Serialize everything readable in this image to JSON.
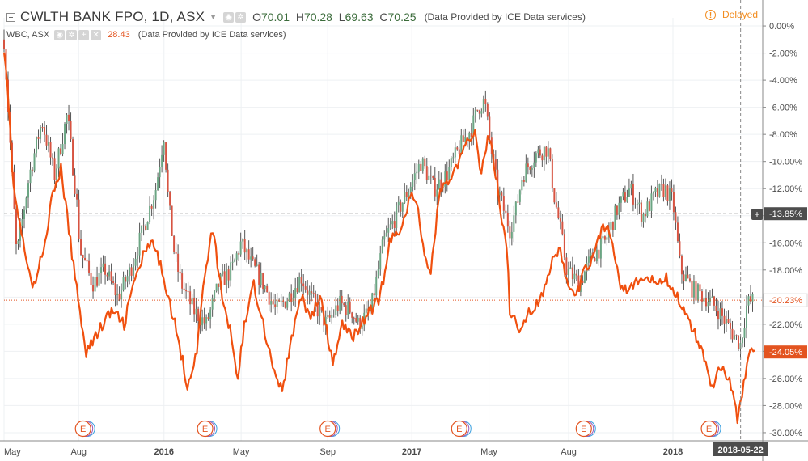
{
  "header": {
    "symbol_title": "CWLTH BANK FPO, 1D, ASX",
    "open_label": "O",
    "open_value": "70.01",
    "high_label": "H",
    "high_value": "70.28",
    "low_label": "L",
    "low_value": "69.63",
    "close_label": "C",
    "close_value": "70.25",
    "provider": "(Data Provided by ICE Data services)",
    "delayed_label": "Delayed"
  },
  "compare": {
    "symbol": "WBC, ASX",
    "value": "28.43",
    "provider": "(Data Provided by ICE Data services)"
  },
  "colors": {
    "up": "#6ba583",
    "down": "#d75442",
    "wick": "#555555",
    "compare_line": "#f0500f",
    "grid": "#eef0f3",
    "axis": "#888888",
    "marker": "#e35420"
  },
  "chart_data": {
    "type": "line",
    "y_unit": "%",
    "ylim": [
      -30.6,
      0.6
    ],
    "y_ticks": [
      "0.00%",
      "-2.00%",
      "-4.00%",
      "-6.00%",
      "-8.00%",
      "-10.00%",
      "-12.00%",
      "-14.00%",
      "-16.00%",
      "-18.00%",
      "-20.00%",
      "-22.00%",
      "-24.00%",
      "-26.00%",
      "-28.00%",
      "-30.00%"
    ],
    "y_tick_values": [
      0,
      -2,
      -4,
      -6,
      -8,
      -10,
      -12,
      -14,
      -16,
      -18,
      -20,
      -22,
      -24,
      -26,
      -28,
      -30
    ],
    "x_ticks": [
      "May",
      "Aug",
      "2016",
      "May",
      "Sep",
      "2017",
      "May",
      "Aug",
      "2018"
    ],
    "x_tick_positions": [
      0,
      0.118,
      0.253,
      0.375,
      0.512,
      0.645,
      0.767,
      0.893,
      1.058
    ],
    "x_range": [
      0,
      1.2
    ],
    "crosshair_date": "2018-05-22",
    "crosshair_x": 1.165,
    "series": [
      {
        "name": "CWLTH BANK FPO, 1D, ASX",
        "style": "candles",
        "points": [
          [
            0,
            -1
          ],
          [
            0.01,
            -9
          ],
          [
            0.02,
            -17
          ],
          [
            0.04,
            -11
          ],
          [
            0.06,
            -7
          ],
          [
            0.08,
            -11
          ],
          [
            0.1,
            -6.5
          ],
          [
            0.115,
            -13
          ],
          [
            0.12,
            -16.5
          ],
          [
            0.14,
            -19
          ],
          [
            0.16,
            -18
          ],
          [
            0.18,
            -20
          ],
          [
            0.2,
            -18
          ],
          [
            0.22,
            -15
          ],
          [
            0.24,
            -12
          ],
          [
            0.253,
            -8
          ],
          [
            0.26,
            -13
          ],
          [
            0.27,
            -17
          ],
          [
            0.28,
            -19
          ],
          [
            0.3,
            -21
          ],
          [
            0.32,
            -22
          ],
          [
            0.34,
            -19
          ],
          [
            0.36,
            -18
          ],
          [
            0.375,
            -16
          ],
          [
            0.39,
            -17.5
          ],
          [
            0.41,
            -19
          ],
          [
            0.43,
            -21
          ],
          [
            0.45,
            -20
          ],
          [
            0.47,
            -18.5
          ],
          [
            0.49,
            -20.5
          ],
          [
            0.51,
            -22
          ],
          [
            0.53,
            -20.5
          ],
          [
            0.55,
            -21
          ],
          [
            0.56,
            -22
          ],
          [
            0.58,
            -21
          ],
          [
            0.6,
            -16
          ],
          [
            0.62,
            -14
          ],
          [
            0.645,
            -11.5
          ],
          [
            0.66,
            -10
          ],
          [
            0.68,
            -12
          ],
          [
            0.7,
            -11
          ],
          [
            0.72,
            -9
          ],
          [
            0.74,
            -7.5
          ],
          [
            0.75,
            -6
          ],
          [
            0.76,
            -5.5
          ],
          [
            0.767,
            -8
          ],
          [
            0.78,
            -12
          ],
          [
            0.8,
            -15
          ],
          [
            0.81,
            -13.5
          ],
          [
            0.82,
            -11
          ],
          [
            0.84,
            -9.5
          ],
          [
            0.86,
            -9
          ],
          [
            0.87,
            -12.5
          ],
          [
            0.88,
            -15
          ],
          [
            0.89,
            -18
          ],
          [
            0.91,
            -19
          ],
          [
            0.93,
            -17
          ],
          [
            0.95,
            -16
          ],
          [
            0.97,
            -13.5
          ],
          [
            0.99,
            -12
          ],
          [
            1.01,
            -14
          ],
          [
            1.03,
            -12.5
          ],
          [
            1.045,
            -12
          ],
          [
            1.058,
            -13
          ],
          [
            1.07,
            -18
          ],
          [
            1.09,
            -19.5
          ],
          [
            1.11,
            -20
          ],
          [
            1.13,
            -21
          ],
          [
            1.15,
            -22.5
          ],
          [
            1.165,
            -23.5
          ],
          [
            1.175,
            -20.5
          ],
          [
            1.185,
            -20.23
          ]
        ]
      },
      {
        "name": "WBC, ASX",
        "style": "line",
        "points": [
          [
            0,
            -1.5
          ],
          [
            0.005,
            -4
          ],
          [
            0.015,
            -12
          ],
          [
            0.03,
            -16
          ],
          [
            0.045,
            -19.5
          ],
          [
            0.06,
            -17
          ],
          [
            0.075,
            -13
          ],
          [
            0.09,
            -10.5
          ],
          [
            0.105,
            -16
          ],
          [
            0.12,
            -21
          ],
          [
            0.13,
            -24
          ],
          [
            0.15,
            -22.5
          ],
          [
            0.17,
            -21
          ],
          [
            0.19,
            -22
          ],
          [
            0.205,
            -19
          ],
          [
            0.22,
            -17
          ],
          [
            0.235,
            -16
          ],
          [
            0.253,
            -18.5
          ],
          [
            0.265,
            -21
          ],
          [
            0.275,
            -23
          ],
          [
            0.29,
            -26.5
          ],
          [
            0.305,
            -24
          ],
          [
            0.318,
            -18
          ],
          [
            0.33,
            -15
          ],
          [
            0.345,
            -20
          ],
          [
            0.36,
            -23
          ],
          [
            0.37,
            -26
          ],
          [
            0.38,
            -22
          ],
          [
            0.395,
            -19
          ],
          [
            0.41,
            -22
          ],
          [
            0.425,
            -25
          ],
          [
            0.44,
            -27
          ],
          [
            0.455,
            -23
          ],
          [
            0.47,
            -20
          ],
          [
            0.485,
            -21.5
          ],
          [
            0.5,
            -20
          ],
          [
            0.512,
            -23
          ],
          [
            0.52,
            -25
          ],
          [
            0.535,
            -22
          ],
          [
            0.55,
            -23
          ],
          [
            0.565,
            -22
          ],
          [
            0.58,
            -21
          ],
          [
            0.595,
            -20
          ],
          [
            0.61,
            -16
          ],
          [
            0.625,
            -15
          ],
          [
            0.645,
            -12.5
          ],
          [
            0.655,
            -13.5
          ],
          [
            0.665,
            -17
          ],
          [
            0.675,
            -18
          ],
          [
            0.69,
            -12
          ],
          [
            0.71,
            -11
          ],
          [
            0.73,
            -9
          ],
          [
            0.745,
            -7.5
          ],
          [
            0.755,
            -11
          ],
          [
            0.767,
            -8
          ],
          [
            0.775,
            -10
          ],
          [
            0.785,
            -13.5
          ],
          [
            0.795,
            -16
          ],
          [
            0.8,
            -21
          ],
          [
            0.815,
            -22.5
          ],
          [
            0.83,
            -21
          ],
          [
            0.845,
            -20.5
          ],
          [
            0.855,
            -19.5
          ],
          [
            0.87,
            -17
          ],
          [
            0.88,
            -16.5
          ],
          [
            0.893,
            -19.5
          ],
          [
            0.905,
            -20
          ],
          [
            0.915,
            -18.5
          ],
          [
            0.93,
            -17
          ],
          [
            0.94,
            -15.5
          ],
          [
            0.955,
            -14.5
          ],
          [
            0.965,
            -16.5
          ],
          [
            0.975,
            -19
          ],
          [
            0.99,
            -19.5
          ],
          [
            1.0,
            -19
          ],
          [
            1.015,
            -18.5
          ],
          [
            1.03,
            -19
          ],
          [
            1.045,
            -18.5
          ],
          [
            1.06,
            -19.5
          ],
          [
            1.075,
            -21
          ],
          [
            1.09,
            -22.5
          ],
          [
            1.105,
            -24
          ],
          [
            1.12,
            -26.5
          ],
          [
            1.135,
            -25
          ],
          [
            1.15,
            -26.5
          ],
          [
            1.16,
            -29
          ],
          [
            1.168,
            -27
          ],
          [
            1.178,
            -24
          ],
          [
            1.188,
            -24.05
          ]
        ]
      }
    ],
    "horizontal_levels": [
      {
        "value": -13.85,
        "label": "-13.85%",
        "style": "dashed-gray"
      },
      {
        "value": -20.23,
        "label": "-20.23%",
        "style": "dotted-red"
      },
      {
        "value": -24.05,
        "label": "-24.05%",
        "style": "solid-red-tag"
      }
    ],
    "events": [
      {
        "label": "E",
        "x": 0.125
      },
      {
        "label": "E",
        "x": 0.318
      },
      {
        "label": "E",
        "x": 0.512
      },
      {
        "label": "E",
        "x": 0.72
      },
      {
        "label": "E",
        "x": 0.917
      },
      {
        "label": "E",
        "x": 1.115
      }
    ]
  }
}
